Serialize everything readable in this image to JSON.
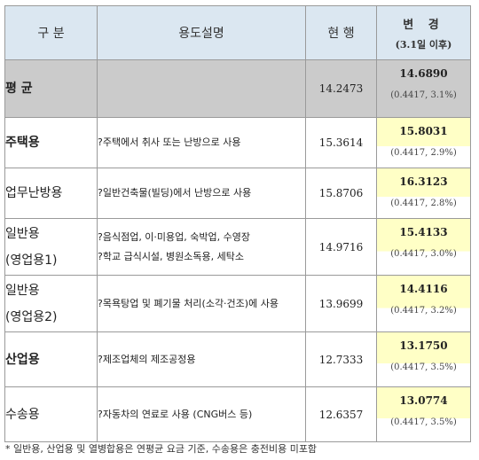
{
  "header": {
    "category": "구 분",
    "description": "용도설명",
    "current": "현 행",
    "change": "변 경",
    "change_sub": "(3.1일 이후)"
  },
  "rows": [
    {
      "category": "평 균",
      "category2": "",
      "description": "",
      "description2": "",
      "current": "14.2473",
      "change": "14.6890",
      "delta": "(0.4417, 3.1%)"
    },
    {
      "category": "주택용",
      "category2": "",
      "description": "?주택에서 취사 또는 난방으로 사용",
      "description2": "",
      "current": "15.3614",
      "change": "15.8031",
      "delta": "(0.4417, 2.9%)"
    },
    {
      "category": "업무난방용",
      "category2": "",
      "description": "?일반건축물(빌딩)에서 난방으로 사용",
      "description2": "",
      "current": "15.8706",
      "change": "16.3123",
      "delta": "(0.4417, 2.8%)"
    },
    {
      "category": "일반용",
      "category2": "(영업용1)",
      "description": "?음식점업, 이·미용업, 숙박업, 수영장",
      "description2": "?학교 급식시설, 병원소독용, 세탁소",
      "current": "14.9716",
      "change": "15.4133",
      "delta": "(0.4417, 3.0%)"
    },
    {
      "category": "일반용",
      "category2": "(영업용2)",
      "description": "?목욕탕업 및 폐기물 처리(소각·건조)에 사용",
      "description2": "",
      "current": "13.9699",
      "change": "14.4116",
      "delta": "(0.4417, 3.2%)"
    },
    {
      "category": "산업용",
      "category2": "",
      "description": "?제조업체의 제조공정용",
      "description2": "",
      "current": "12.7333",
      "change": "13.1750",
      "delta": "(0.4417, 3.5%)"
    },
    {
      "category": "수송용",
      "category2": "",
      "description": "?자동차의 연료로 사용 (CNG버스 등)",
      "description2": "",
      "current": "12.6357",
      "change": "13.0774",
      "delta": "(0.4417, 3.5%)"
    }
  ],
  "footnote": "* 일반용, 산업용 및 열병합용은 연평균 요금 기준, 수송용은 충전비용 미포함"
}
